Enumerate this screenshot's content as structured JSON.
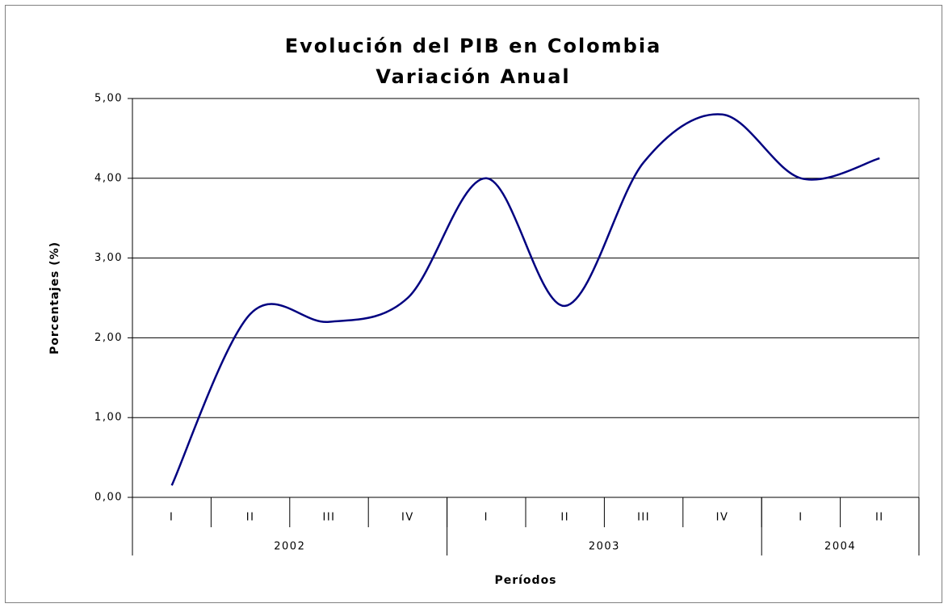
{
  "chart_data": {
    "type": "line",
    "title": [
      "Evolución del PIB en Colombia",
      "Variación Anual"
    ],
    "x_label": "Períodos",
    "y_label": "Porcentajes (%)",
    "categories": [
      "I",
      "II",
      "III",
      "IV",
      "I",
      "II",
      "III",
      "IV",
      "I",
      "II"
    ],
    "groups": [
      {
        "label": "2002",
        "count": 4
      },
      {
        "label": "2003",
        "count": 4
      },
      {
        "label": "2004",
        "count": 2
      }
    ],
    "series": [
      {
        "name": "PIB",
        "color": "#000080",
        "values": [
          0.15,
          2.3,
          2.2,
          2.5,
          4.0,
          2.4,
          4.2,
          4.8,
          4.0,
          4.25
        ]
      }
    ],
    "ylim": [
      0,
      5
    ],
    "yticks": [
      {
        "value": 0,
        "label": "0,00"
      },
      {
        "value": 1,
        "label": "1,00"
      },
      {
        "value": 2,
        "label": "2,00"
      },
      {
        "value": 3,
        "label": "3,00"
      },
      {
        "value": 4,
        "label": "4,00"
      },
      {
        "value": 5,
        "label": "5,00"
      }
    ],
    "grid": true,
    "smooth": true
  }
}
